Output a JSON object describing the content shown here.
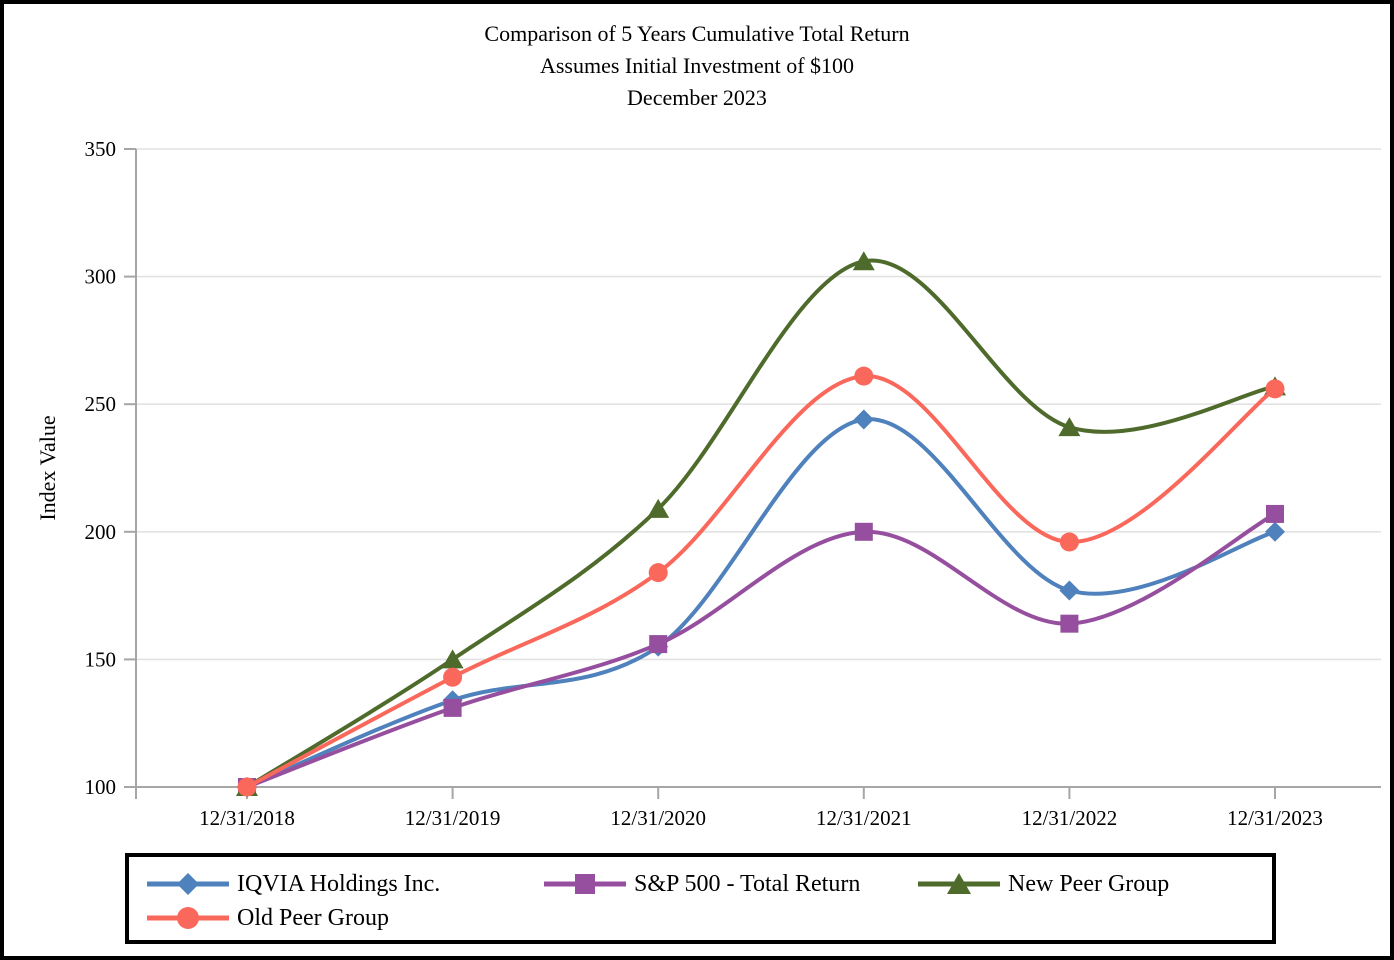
{
  "title": {
    "line1": "Comparison of 5 Years Cumulative Total Return",
    "line2": "Assumes Initial Investment of $100",
    "line3": "December 2023"
  },
  "chart_data": {
    "type": "line",
    "title": "Comparison of 5 Years Cumulative Total Return — Assumes Initial Investment of $100 — December 2023",
    "xlabel": "",
    "ylabel": "Index Value",
    "categories": [
      "12/31/2018",
      "12/31/2019",
      "12/31/2020",
      "12/31/2021",
      "12/31/2022",
      "12/31/2023"
    ],
    "series": [
      {
        "name": "IQVIA Holdings Inc.",
        "marker": "diamond",
        "color": "#4F81BD",
        "values": [
          100,
          134,
          155,
          244,
          177,
          200
        ]
      },
      {
        "name": "S&P 500 - Total Return",
        "marker": "square",
        "color": "#964F9E",
        "values": [
          100,
          131,
          156,
          200,
          164,
          207
        ]
      },
      {
        "name": "New Peer Group",
        "marker": "triangle",
        "color": "#4E6B2C",
        "values": [
          100,
          150,
          209,
          306,
          241,
          257
        ]
      },
      {
        "name": "Old Peer Group",
        "marker": "circle",
        "color": "#FA685C",
        "values": [
          100,
          143,
          184,
          261,
          196,
          256
        ]
      }
    ],
    "ylim": [
      100,
      350
    ],
    "yticks": [
      100,
      150,
      200,
      250,
      300,
      350
    ],
    "grid": true,
    "line_smooth": true,
    "legend_position": "bottom"
  },
  "colors": {
    "axis": "#A6A6A6",
    "gridline": "#E2E2E2",
    "text": "#000000",
    "border": "#000000"
  }
}
